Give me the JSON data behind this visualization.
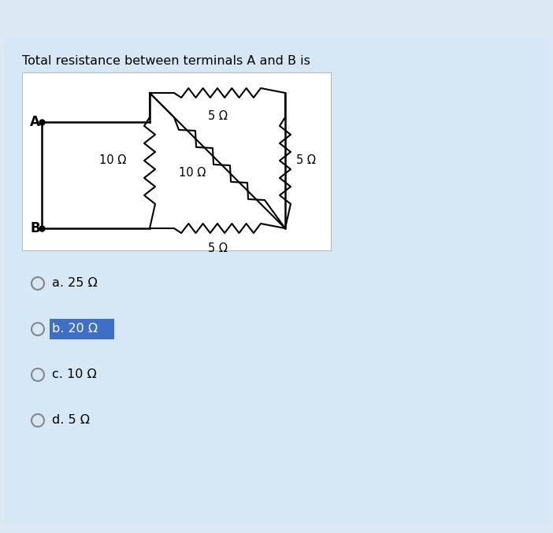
{
  "title": "Total resistance between terminals A and B is",
  "bg_color": "#d6e8f5",
  "outer_bg": "#dce8f3",
  "circuit_bg": "#ffffff",
  "title_fontsize": 11.5,
  "choices": [
    {
      "label": "a. 25 Ω",
      "selected": false
    },
    {
      "label": "b. 20 Ω",
      "selected": true
    },
    {
      "label": "c. 10 Ω",
      "selected": false
    },
    {
      "label": "d. 5 Ω",
      "selected": false
    }
  ],
  "resistor_labels": {
    "left": "10 Ω",
    "top": "5 Ω",
    "diagonal_resistor": "10 Ω",
    "right": "5 Ω",
    "bottom": "5 Ω"
  },
  "terminal_A_label": "A",
  "terminal_B_label": "B",
  "highlight_color": "#3d6fc8"
}
